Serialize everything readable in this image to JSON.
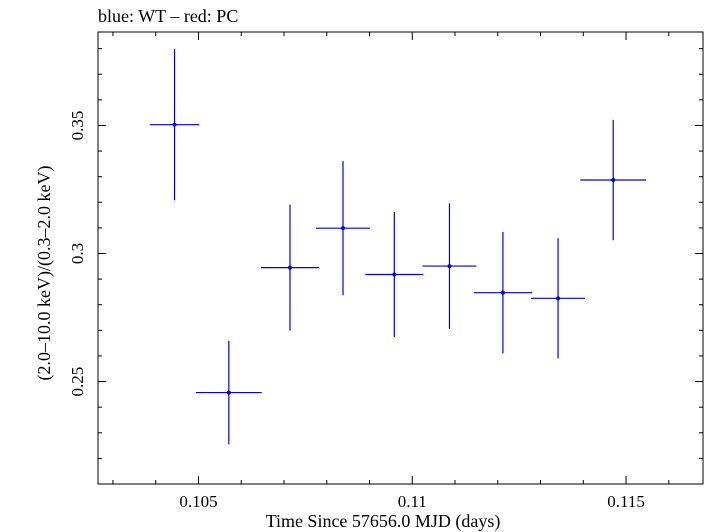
{
  "chart_data": {
    "type": "scatter",
    "title": "blue: WT – red: PC",
    "xlabel": "Time Since 57656.0 MJD (days)",
    "ylabel": "(2.0–10.0 keV)/(0.3–2.0 keV)",
    "xlim": [
      0.10265,
      0.1168
    ],
    "ylim": [
      0.21,
      0.3865
    ],
    "x_ticks": [
      0.105,
      0.11,
      0.115
    ],
    "x_tick_labels": [
      "0.105",
      "0.11",
      "0.115"
    ],
    "y_ticks": [
      0.25,
      0.3,
      0.35
    ],
    "y_tick_labels": [
      "0.25",
      "0.3",
      "0.35"
    ],
    "grid": false,
    "series": [
      {
        "color": "#0000ee",
        "points": [
          {
            "x": 0.10444,
            "y": 0.3503,
            "xerr": 0.00058,
            "yerr": 0.0295
          },
          {
            "x": 0.10571,
            "y": 0.2457,
            "xerr": 0.00077,
            "yerr": 0.0202
          },
          {
            "x": 0.10714,
            "y": 0.2945,
            "xerr": 0.00068,
            "yerr": 0.0246
          },
          {
            "x": 0.10838,
            "y": 0.3099,
            "xerr": 0.00063,
            "yerr": 0.0262
          },
          {
            "x": 0.10958,
            "y": 0.2918,
            "xerr": 0.00068,
            "yerr": 0.0244
          },
          {
            "x": 0.11087,
            "y": 0.2951,
            "xerr": 0.00063,
            "yerr": 0.0245
          },
          {
            "x": 0.11212,
            "y": 0.2847,
            "xerr": 0.00068,
            "yerr": 0.0237
          },
          {
            "x": 0.11341,
            "y": 0.2825,
            "xerr": 0.00063,
            "yerr": 0.0235
          },
          {
            "x": 0.1147,
            "y": 0.3287,
            "xerr": 0.00077,
            "yerr": 0.0235
          }
        ]
      }
    ]
  }
}
